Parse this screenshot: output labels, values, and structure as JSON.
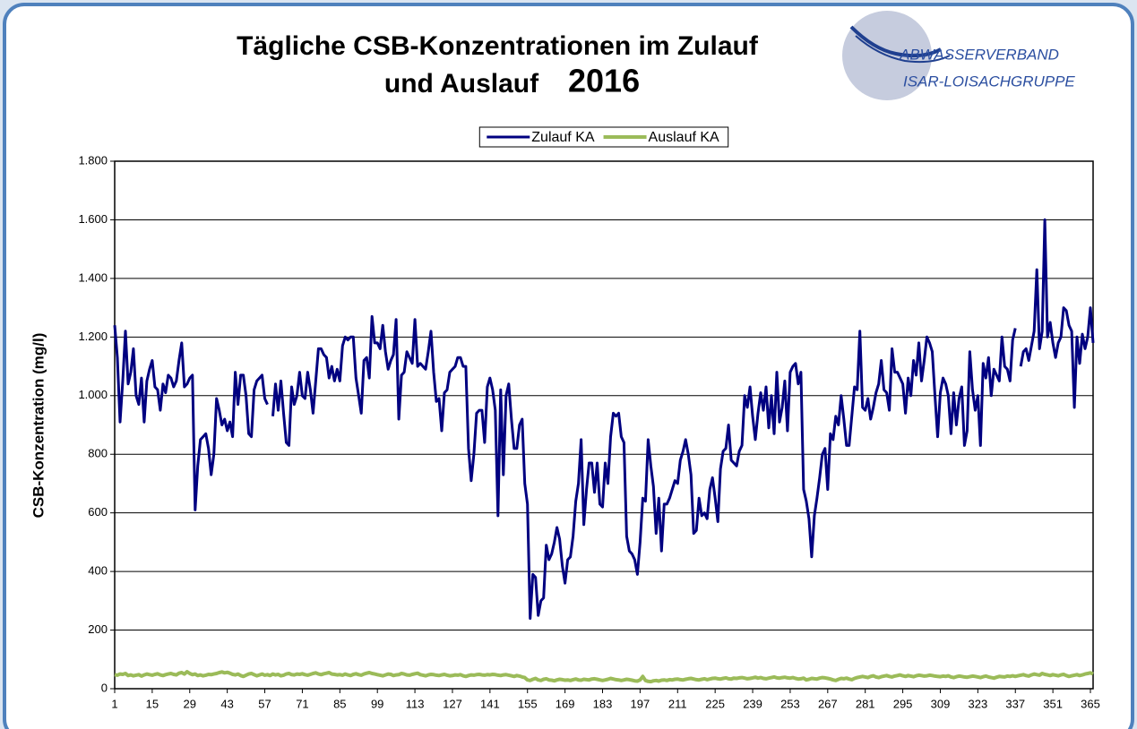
{
  "chart_data": {
    "type": "line",
    "title_lines": [
      "Tägliche CSB-Konzentrationen im Zulauf",
      "und Auslauf"
    ],
    "title_year": "2016",
    "logo": {
      "top": "ABWASSERVERBAND",
      "bottom": "ISAR-LOISACHGRUPPE"
    },
    "ylabel": "CSB-Konzentration  (mg/l)",
    "xlim": [
      1,
      366
    ],
    "xticks": [
      1,
      15,
      29,
      43,
      57,
      71,
      85,
      99,
      113,
      127,
      141,
      155,
      169,
      183,
      197,
      211,
      225,
      239,
      253,
      267,
      281,
      295,
      309,
      323,
      337,
      351,
      365
    ],
    "ylim": [
      0,
      1800
    ],
    "yticks": [
      0,
      200,
      400,
      600,
      800,
      {
        "value": 1000,
        "label": "1.000"
      },
      {
        "value": 1200,
        "label": "1.200"
      },
      {
        "value": 1400,
        "label": "1.400"
      },
      {
        "value": 1600,
        "label": "1.600"
      },
      {
        "value": 1800,
        "label": "1.800"
      }
    ],
    "grid": true,
    "legend": "top",
    "x": [
      1,
      2,
      3,
      4,
      5,
      6,
      7,
      8,
      9,
      10,
      11,
      12,
      13,
      14,
      15,
      16,
      17,
      18,
      19,
      20,
      21,
      22,
      23,
      24,
      25,
      26,
      27,
      28,
      29,
      30,
      31,
      32,
      33,
      34,
      35,
      36,
      37,
      38,
      39,
      40,
      41,
      42,
      43,
      44,
      45,
      46,
      47,
      48,
      49,
      50,
      51,
      52,
      53,
      54,
      55,
      56,
      57,
      58,
      59,
      60,
      61,
      62,
      63,
      64,
      65,
      66,
      67,
      68,
      69,
      70,
      71,
      72,
      73,
      74,
      75,
      76,
      77,
      78,
      79,
      80,
      81,
      82,
      83,
      84,
      85,
      86,
      87,
      88,
      89,
      90,
      91,
      92,
      93,
      94,
      95,
      96,
      97,
      98,
      99,
      100,
      101,
      102,
      103,
      104,
      105,
      106,
      107,
      108,
      109,
      110,
      111,
      112,
      113,
      114,
      115,
      116,
      117,
      118,
      119,
      120,
      121,
      122,
      123,
      124,
      125,
      126,
      127,
      128,
      129,
      130,
      131,
      132,
      133,
      134,
      135,
      136,
      137,
      138,
      139,
      140,
      141,
      142,
      143,
      144,
      145,
      146,
      147,
      148,
      149,
      150,
      151,
      152,
      153,
      154,
      155,
      156,
      157,
      158,
      159,
      160,
      161,
      162,
      163,
      164,
      165,
      166,
      167,
      168,
      169,
      170,
      171,
      172,
      173,
      174,
      175,
      176,
      177,
      178,
      179,
      180,
      181,
      182,
      183,
      184,
      185,
      186,
      187,
      188,
      189,
      190,
      191,
      192,
      193,
      194,
      195,
      196,
      197,
      198,
      199,
      200,
      201,
      202,
      203,
      204,
      205,
      206,
      207,
      208,
      209,
      210,
      211,
      212,
      213,
      214,
      215,
      216,
      217,
      218,
      219,
      220,
      221,
      222,
      223,
      224,
      225,
      226,
      227,
      228,
      229,
      230,
      231,
      232,
      233,
      234,
      235,
      236,
      237,
      238,
      239,
      240,
      241,
      242,
      243,
      244,
      245,
      246,
      247,
      248,
      249,
      250,
      251,
      252,
      253,
      254,
      255,
      256,
      257,
      258,
      259,
      260,
      261,
      262,
      263,
      264,
      265,
      266,
      267,
      268,
      269,
      270,
      271,
      272,
      273,
      274,
      275,
      276,
      277,
      278,
      279,
      280,
      281,
      282,
      283,
      284,
      285,
      286,
      287,
      288,
      289,
      290,
      291,
      292,
      293,
      294,
      295,
      296,
      297,
      298,
      299,
      300,
      301,
      302,
      303,
      304,
      305,
      306,
      307,
      308,
      309,
      310,
      311,
      312,
      313,
      314,
      315,
      316,
      317,
      318,
      319,
      320,
      321,
      322,
      323,
      324,
      325,
      326,
      327,
      328,
      329,
      330,
      331,
      332,
      333,
      334,
      335,
      336,
      337,
      338,
      339,
      340,
      341,
      342,
      343,
      344,
      345,
      346,
      347,
      348,
      349,
      350,
      351,
      352,
      353,
      354,
      355,
      356,
      357,
      358,
      359,
      360,
      361,
      362,
      363,
      364,
      365,
      366
    ],
    "series": [
      {
        "name": "Zulauf KA",
        "color": "#000080",
        "values": [
          1240,
          1130,
          910,
          1050,
          1220,
          1040,
          1080,
          1160,
          1000,
          970,
          1060,
          910,
          1050,
          1090,
          1120,
          1030,
          1020,
          950,
          1040,
          1010,
          1070,
          1060,
          1030,
          1050,
          1120,
          1180,
          1030,
          1040,
          1060,
          1070,
          610,
          760,
          850,
          860,
          870,
          820,
          730,
          800,
          990,
          950,
          900,
          920,
          880,
          910,
          860,
          1080,
          970,
          1070,
          1070,
          1000,
          870,
          860,
          1020,
          1050,
          1060,
          1070,
          990,
          970,
          null,
          930,
          1040,
          950,
          1050,
          940,
          840,
          830,
          1030,
          970,
          1000,
          1080,
          1000,
          990,
          1080,
          1020,
          940,
          1050,
          1160,
          1160,
          1140,
          1130,
          1060,
          1100,
          1050,
          1090,
          1050,
          1170,
          1200,
          1190,
          1200,
          1200,
          1060,
          1000,
          940,
          1120,
          1130,
          1060,
          1270,
          1180,
          1180,
          1160,
          1240,
          1150,
          1090,
          1120,
          1140,
          1260,
          920,
          1070,
          1080,
          1150,
          1130,
          1110,
          1260,
          1100,
          1110,
          1100,
          1090,
          1150,
          1220,
          1080,
          980,
          990,
          880,
          1010,
          1020,
          1080,
          1090,
          1100,
          1130,
          1130,
          1100,
          1100,
          820,
          710,
          800,
          940,
          950,
          950,
          840,
          1030,
          1060,
          1020,
          950,
          590,
          1020,
          730,
          1000,
          1040,
          920,
          820,
          820,
          900,
          920,
          700,
          630,
          240,
          390,
          380,
          250,
          300,
          310,
          490,
          440,
          460,
          500,
          550,
          510,
          420,
          360,
          440,
          450,
          520,
          640,
          700,
          850,
          560,
          680,
          770,
          770,
          670,
          770,
          630,
          620,
          770,
          700,
          860,
          940,
          930,
          940,
          860,
          840,
          520,
          470,
          460,
          440,
          390,
          500,
          650,
          640,
          850,
          760,
          690,
          530,
          650,
          470,
          630,
          630,
          650,
          680,
          710,
          700,
          780,
          810,
          850,
          800,
          730,
          530,
          540,
          650,
          590,
          600,
          580,
          680,
          720,
          650,
          570,
          750,
          810,
          820,
          900,
          780,
          770,
          760,
          810,
          830,
          1000,
          960,
          1030,
          930,
          850,
          940,
          1010,
          950,
          1030,
          890,
          1000,
          870,
          1080,
          910,
          960,
          1050,
          880,
          1080,
          1100,
          1110,
          1040,
          1080,
          680,
          640,
          580,
          450,
          590,
          650,
          720,
          800,
          820,
          680,
          870,
          850,
          930,
          900,
          1000,
          920,
          830,
          830,
          930,
          1030,
          1020,
          1220,
          960,
          950,
          990,
          920,
          960,
          1010,
          1040,
          1120,
          1020,
          1010,
          950,
          1160,
          1080,
          1080,
          1060,
          1040,
          940,
          1060,
          1000,
          1120,
          1070,
          1180,
          1050,
          1120,
          1200,
          1180,
          1150,
          1000,
          860,
          1010,
          1060,
          1040,
          1000,
          870,
          1010,
          900,
          990,
          1030,
          830,
          880,
          1150,
          1020,
          950,
          1000,
          830,
          1110,
          1060,
          1130,
          1000,
          1090,
          1070,
          1050,
          1200,
          1100,
          1090,
          1050,
          1190,
          1230,
          null,
          1100,
          1150,
          1160,
          1120,
          1170,
          1220,
          1430,
          1160,
          1220,
          1600,
          1200,
          1250,
          1180,
          1130,
          1180,
          1200,
          1300,
          1290,
          1240,
          1220,
          960,
          1200,
          1110,
          1210,
          1160,
          1200,
          1300,
          1180
        ]
      },
      {
        "name": "Auslauf KA",
        "color": "#9bbb59",
        "values": [
          48,
          46,
          50,
          49,
          52,
          45,
          47,
          44,
          46,
          48,
          43,
          47,
          50,
          48,
          46,
          49,
          51,
          47,
          45,
          48,
          50,
          52,
          49,
          47,
          53,
          55,
          50,
          58,
          52,
          48,
          50,
          45,
          47,
          44,
          46,
          49,
          48,
          50,
          52,
          55,
          57,
          54,
          56,
          53,
          49,
          47,
          50,
          45,
          42,
          46,
          50,
          52,
          48,
          44,
          47,
          50,
          46,
          48,
          45,
          50,
          47,
          49,
          44,
          46,
          50,
          52,
          48,
          47,
          50,
          49,
          51,
          48,
          46,
          49,
          52,
          54,
          50,
          48,
          51,
          53,
          55,
          50,
          49,
          47,
          48,
          46,
          50,
          47,
          45,
          49,
          51,
          48,
          46,
          50,
          53,
          55,
          52,
          50,
          48,
          46,
          44,
          47,
          50,
          49,
          45,
          47,
          48,
          52,
          50,
          47,
          46,
          49,
          51,
          53,
          48,
          46,
          44,
          47,
          49,
          48,
          46,
          45,
          47,
          49,
          46,
          44,
          45,
          47,
          46,
          48,
          44,
          42,
          45,
          47,
          46,
          48,
          49,
          47,
          46,
          48,
          47,
          49,
          48,
          46,
          45,
          47,
          48,
          46,
          44,
          42,
          45,
          43,
          40,
          38,
          30,
          28,
          32,
          35,
          30,
          28,
          32,
          34,
          30,
          29,
          27,
          30,
          32,
          31,
          29,
          30,
          28,
          31,
          33,
          30,
          29,
          32,
          31,
          30,
          33,
          34,
          32,
          30,
          28,
          30,
          32,
          35,
          33,
          31,
          30,
          28,
          30,
          32,
          31,
          29,
          27,
          26,
          30,
          42,
          28,
          25,
          24,
          27,
          28,
          26,
          29,
          30,
          28,
          31,
          30,
          32,
          33,
          31,
          30,
          32,
          34,
          35,
          33,
          31,
          30,
          32,
          34,
          31,
          33,
          35,
          36,
          34,
          33,
          35,
          37,
          34,
          33,
          36,
          35,
          37,
          38,
          36,
          34,
          35,
          37,
          39,
          36,
          38,
          35,
          34,
          36,
          38,
          40,
          37,
          36,
          38,
          39,
          37,
          36,
          38,
          35,
          33,
          34,
          36,
          30,
          32,
          35,
          34,
          33,
          36,
          38,
          37,
          35,
          33,
          30,
          28,
          32,
          35,
          34,
          36,
          33,
          31,
          35,
          38,
          40,
          42,
          40,
          38,
          42,
          44,
          40,
          38,
          41,
          43,
          45,
          42,
          40,
          43,
          45,
          47,
          44,
          42,
          45,
          43,
          41,
          44,
          46,
          45,
          43,
          44,
          46,
          45,
          43,
          42,
          41,
          43,
          42,
          44,
          40,
          38,
          41,
          43,
          42,
          40,
          39,
          41,
          43,
          42,
          40,
          38,
          41,
          43,
          40,
          38,
          36,
          39,
          42,
          41,
          40,
          43,
          42,
          44,
          42,
          44,
          46,
          48,
          45,
          43,
          47,
          50,
          48,
          46,
          52,
          49,
          47,
          45,
          48,
          46,
          44,
          47,
          49,
          45,
          42,
          44,
          46,
          48,
          45,
          47,
          50,
          52,
          54,
          50
        ]
      }
    ]
  }
}
